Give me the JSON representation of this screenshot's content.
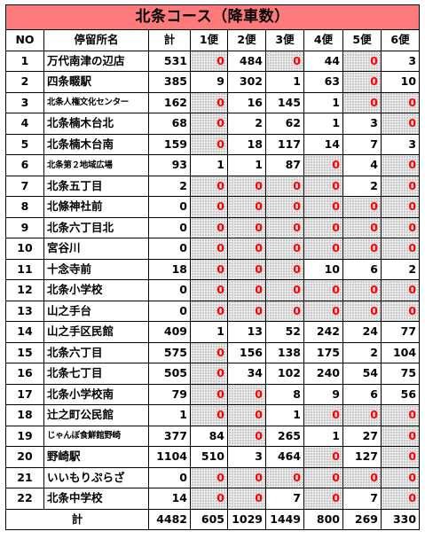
{
  "title": "北条コース（降車数）",
  "columns": [
    "NO",
    "停留所名",
    "計",
    "1便",
    "2便",
    "3便",
    "4便",
    "5便",
    "6便"
  ],
  "rows": [
    {
      "no": "1",
      "name": "万代南津の辺店",
      "values": [
        "531",
        "0",
        "484",
        "0",
        "44",
        "0",
        "3"
      ]
    },
    {
      "no": "2",
      "name": "四条畷駅",
      "values": [
        "385",
        "9",
        "302",
        "1",
        "63",
        "0",
        "10"
      ]
    },
    {
      "no": "3",
      "name": "北条人権文化センター",
      "values": [
        "162",
        "0",
        "16",
        "145",
        "1",
        "0",
        "0"
      ]
    },
    {
      "no": "4",
      "name": "北条楠木台北",
      "values": [
        "68",
        "0",
        "2",
        "62",
        "1",
        "3",
        "0"
      ]
    },
    {
      "no": "5",
      "name": "北条楠木台南",
      "values": [
        "159",
        "0",
        "18",
        "117",
        "14",
        "7",
        "3"
      ]
    },
    {
      "no": "6",
      "name": "北条第２地域広場",
      "values": [
        "93",
        "1",
        "1",
        "87",
        "0",
        "4",
        "0"
      ]
    },
    {
      "no": "7",
      "name": "北条五丁目",
      "values": [
        "2",
        "0",
        "0",
        "0",
        "0",
        "2",
        "0"
      ]
    },
    {
      "no": "8",
      "name": "北條神社前",
      "values": [
        "0",
        "0",
        "0",
        "0",
        "0",
        "0",
        "0"
      ]
    },
    {
      "no": "9",
      "name": "北条六丁目北",
      "values": [
        "0",
        "0",
        "0",
        "0",
        "0",
        "0",
        "0"
      ]
    },
    {
      "no": "10",
      "name": "宮谷川",
      "values": [
        "0",
        "0",
        "0",
        "0",
        "0",
        "0",
        "0"
      ]
    },
    {
      "no": "11",
      "name": "十念寺前",
      "values": [
        "18",
        "0",
        "0",
        "0",
        "10",
        "6",
        "2"
      ]
    },
    {
      "no": "12",
      "name": "北条小学校",
      "values": [
        "0",
        "0",
        "0",
        "0",
        "0",
        "0",
        "0"
      ]
    },
    {
      "no": "13",
      "name": "山之手台",
      "values": [
        "0",
        "0",
        "0",
        "0",
        "0",
        "0",
        "0"
      ]
    },
    {
      "no": "14",
      "name": "山之手区民館",
      "values": [
        "409",
        "1",
        "13",
        "52",
        "242",
        "24",
        "77"
      ]
    },
    {
      "no": "15",
      "name": "北条六丁目",
      "values": [
        "575",
        "0",
        "156",
        "138",
        "175",
        "2",
        "104"
      ]
    },
    {
      "no": "16",
      "name": "北条七丁目",
      "values": [
        "505",
        "0",
        "34",
        "102",
        "240",
        "54",
        "75"
      ]
    },
    {
      "no": "17",
      "name": "北条小学校南",
      "values": [
        "79",
        "0",
        "0",
        "8",
        "9",
        "6",
        "56"
      ]
    },
    {
      "no": "18",
      "name": "辻之町公民館",
      "values": [
        "1",
        "0",
        "0",
        "1",
        "0",
        "0",
        "0"
      ]
    },
    {
      "no": "19",
      "name": "じゃんぼ食鮮館野崎",
      "values": [
        "377",
        "84",
        "0",
        "265",
        "1",
        "27",
        "0"
      ]
    },
    {
      "no": "20",
      "name": "野崎駅",
      "values": [
        "1104",
        "510",
        "3",
        "464",
        "0",
        "127",
        "0"
      ]
    },
    {
      "no": "21",
      "name": "いいもりぷらざ",
      "values": [
        "0",
        "0",
        "0",
        "0",
        "0",
        "0",
        "0"
      ]
    },
    {
      "no": "22",
      "name": "北条中学校",
      "values": [
        "14",
        "0",
        "0",
        "7",
        "0",
        "7",
        "0"
      ]
    }
  ],
  "total": {
    "label": "計",
    "values": [
      "4482",
      "605",
      "1029",
      "1449",
      "800",
      "269",
      "330"
    ]
  },
  "colors": {
    "title_bg": "#ff7b7b",
    "zero_text": "#ff0000",
    "zero_bg": "#ececec"
  }
}
